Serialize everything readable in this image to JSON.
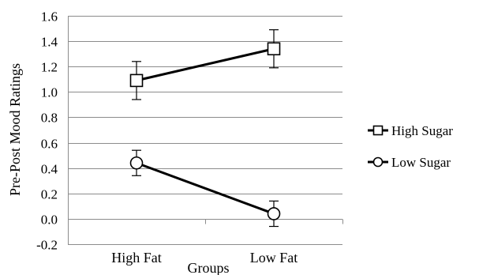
{
  "chart_data": {
    "type": "line",
    "title": "",
    "xlabel": "Groups",
    "ylabel": "Pre-Post Mood Ratings",
    "categories": [
      "High Fat",
      "Low Fat"
    ],
    "ylim": [
      -0.2,
      1.6
    ],
    "yticks": [
      "1.6",
      "1.4",
      "1.2",
      "1.0",
      "0.8",
      "0.6",
      "0.4",
      "0.2",
      "0.0",
      "-0.2"
    ],
    "grid": true,
    "legend_position": "right",
    "series": [
      {
        "name": "High Sugar",
        "marker": "square",
        "values": [
          1.09,
          1.34
        ],
        "error": [
          0.15,
          0.15
        ]
      },
      {
        "name": "Low Sugar",
        "marker": "circle",
        "values": [
          0.44,
          0.04
        ],
        "error": [
          0.1,
          0.1
        ]
      }
    ],
    "colors": {
      "line": "#000000",
      "grid": "#8c8c8c",
      "background": "#ffffff"
    }
  }
}
